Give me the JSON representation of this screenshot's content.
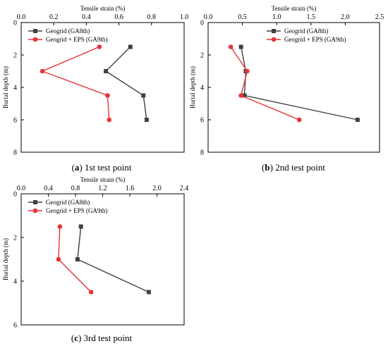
{
  "chart_data": [
    {
      "type": "line",
      "panel": "a",
      "caption_letter": "a",
      "caption_text": "1st test point",
      "xlabel": "Tensile strain (%)",
      "ylabel": "Burial depth (m)",
      "xlim": [
        0,
        1.0
      ],
      "ylim": [
        0,
        8
      ],
      "x_ticks": [
        "0.0",
        "0.2",
        "0.4",
        "0.6",
        "0.8",
        "1.0"
      ],
      "y_ticks": [
        "0",
        "2",
        "4",
        "6",
        "8"
      ],
      "legend_position": "top-left",
      "series": [
        {
          "name": "Geogrid (GA8th)",
          "color": "#404040",
          "marker": "square",
          "points": [
            {
              "x": 0.67,
              "y": 1.5
            },
            {
              "x": 0.52,
              "y": 3.0
            },
            {
              "x": 0.75,
              "y": 4.5
            },
            {
              "x": 0.77,
              "y": 6.0
            }
          ]
        },
        {
          "name": "Geogrid + EPS (GA9th)",
          "color": "#e8333a",
          "marker": "circle",
          "points": [
            {
              "x": 0.48,
              "y": 1.5
            },
            {
              "x": 0.13,
              "y": 3.0
            },
            {
              "x": 0.53,
              "y": 4.5
            },
            {
              "x": 0.54,
              "y": 6.0
            }
          ]
        }
      ]
    },
    {
      "type": "line",
      "panel": "b",
      "caption_letter": "b",
      "caption_text": "2nd test point",
      "xlabel": "Tensile strain (%)",
      "ylabel": "Burial depth (m)",
      "xlim": [
        0,
        2.5
      ],
      "ylim": [
        0,
        8
      ],
      "x_ticks": [
        "0.0",
        "0.5",
        "1.0",
        "1.5",
        "2.0",
        "2.5"
      ],
      "y_ticks": [
        "0",
        "2",
        "4",
        "6",
        "8"
      ],
      "legend_position": "top-right",
      "series": [
        {
          "name": "Geogrid (GA8th)",
          "color": "#404040",
          "marker": "square",
          "points": [
            {
              "x": 0.48,
              "y": 1.5
            },
            {
              "x": 0.55,
              "y": 3.0
            },
            {
              "x": 0.53,
              "y": 4.5
            },
            {
              "x": 2.18,
              "y": 6.0
            }
          ]
        },
        {
          "name": "Geogrid + EPS (GA9th)",
          "color": "#e8333a",
          "marker": "circle",
          "points": [
            {
              "x": 0.33,
              "y": 1.5
            },
            {
              "x": 0.57,
              "y": 3.0
            },
            {
              "x": 0.48,
              "y": 4.5
            },
            {
              "x": 1.33,
              "y": 6.0
            }
          ]
        }
      ]
    },
    {
      "type": "line",
      "panel": "c",
      "caption_letter": "c",
      "caption_text": "3rd test point",
      "xlabel": "Tensile strain (%)",
      "ylabel": "Burial depth (m)",
      "xlim": [
        0,
        2.4
      ],
      "ylim": [
        0,
        6
      ],
      "x_ticks": [
        "0.0",
        "0.4",
        "0.8",
        "1.2",
        "1.6",
        "2.0",
        "2.4"
      ],
      "y_ticks": [
        "0",
        "2",
        "4",
        "6"
      ],
      "legend_position": "top-left",
      "series": [
        {
          "name": "Geogrid (GA8th)",
          "color": "#404040",
          "marker": "square",
          "points": [
            {
              "x": 0.88,
              "y": 1.5
            },
            {
              "x": 0.83,
              "y": 3.0
            },
            {
              "x": 1.88,
              "y": 4.5
            }
          ]
        },
        {
          "name": "Geogrid + EPS (GA9th)",
          "color": "#e8333a",
          "marker": "circle",
          "points": [
            {
              "x": 0.57,
              "y": 1.5
            },
            {
              "x": 0.55,
              "y": 3.0
            },
            {
              "x": 1.03,
              "y": 4.5
            }
          ]
        }
      ]
    }
  ]
}
